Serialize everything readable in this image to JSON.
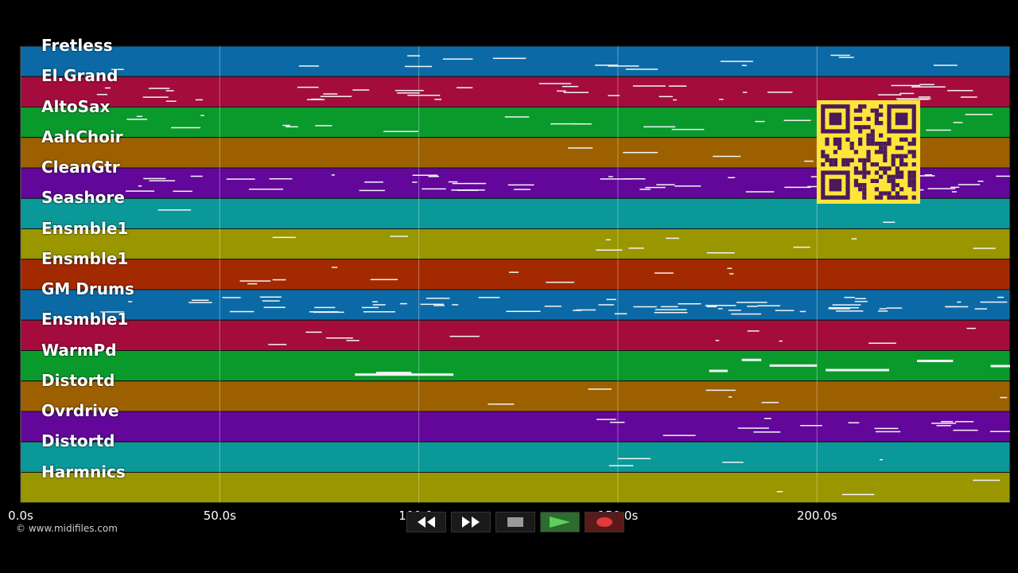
{
  "tracks": [
    {
      "name": "Fretless",
      "color": "#0b6aa6"
    },
    {
      "name": "El.Grand",
      "color": "#a30c3d"
    },
    {
      "name": "AltoSax",
      "color": "#0a9a2c"
    },
    {
      "name": "AahChoir",
      "color": "#9c6000"
    },
    {
      "name": "CleanGtr",
      "color": "#62079a"
    },
    {
      "name": "Seashore",
      "color": "#0a9898"
    },
    {
      "name": "Ensmble1",
      "color": "#9a9600"
    },
    {
      "name": "Ensmble1",
      "color": "#a32a00"
    },
    {
      "name": "GM Drums",
      "color": "#0b6aa6"
    },
    {
      "name": "Ensmble1",
      "color": "#a30c3d"
    },
    {
      "name": "WarmPd",
      "color": "#0a9a2c"
    },
    {
      "name": "Distortd",
      "color": "#9c6000"
    },
    {
      "name": "Ovrdrive",
      "color": "#62079a"
    },
    {
      "name": "Distortd",
      "color": "#0a9898"
    },
    {
      "name": "Harmnics",
      "color": "#9a9600"
    }
  ],
  "timeline": {
    "ticks": [
      "0.0s",
      "50.0s",
      "100.0s",
      "150.0s",
      "200.0s"
    ],
    "tick_seconds": [
      0,
      50,
      100,
      150,
      200
    ],
    "max_seconds": 248.5
  },
  "copyright": "© www.midifiles.com",
  "transport": {
    "rewind_icon": "rewind-icon",
    "forward_icon": "fast-forward-icon",
    "stop_icon": "stop-icon",
    "play_icon": "play-icon",
    "record_icon": "record-icon"
  },
  "qr_colors": {
    "bg": "#ffe53a",
    "fg": "#4a1a5a"
  }
}
